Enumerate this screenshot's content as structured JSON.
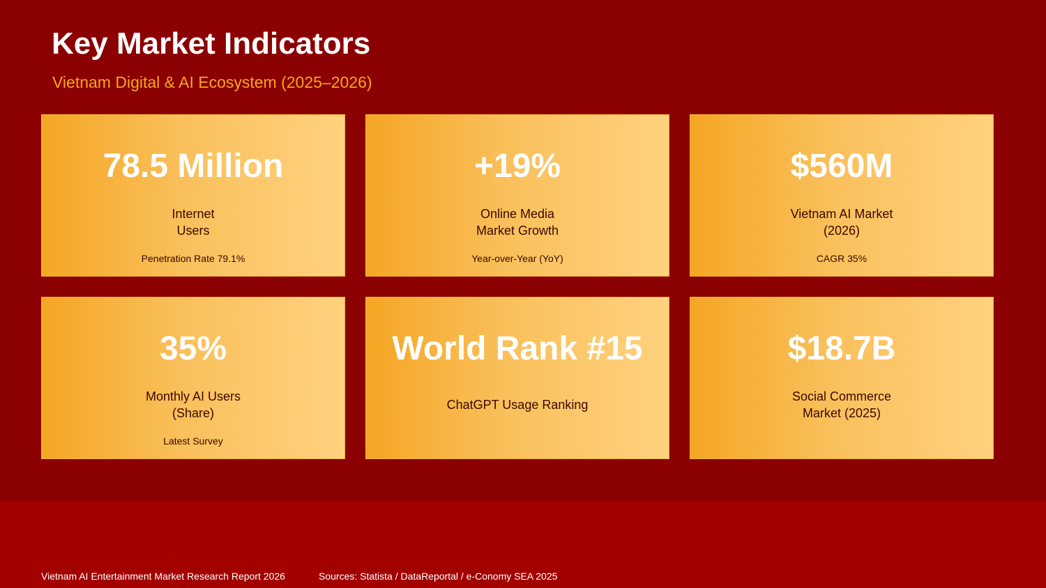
{
  "header": {
    "title": "Key Market Indicators",
    "subtitle": "Vietnam Digital & AI Ecosystem (2025–2026)"
  },
  "cards": [
    {
      "value": "78.5 Million",
      "label": [
        "Internet",
        "Users"
      ],
      "note": "Penetration Rate 79.1%"
    },
    {
      "value": "+19%",
      "label": [
        "Online Media",
        "Market Growth"
      ],
      "note": "Year-over-Year (YoY)"
    },
    {
      "value": "$560M",
      "label": [
        "Vietnam AI Market",
        "(2026)"
      ],
      "note": "CAGR 35%"
    },
    {
      "value": "35%",
      "label": [
        "Monthly AI Users",
        "(Share)"
      ],
      "note": "Latest Survey"
    },
    {
      "value": "World Rank #15",
      "label": [
        "ChatGPT Usage Ranking"
      ]
    },
    {
      "value": "$18.7B",
      "label": [
        "Social Commerce",
        "Market (2025)"
      ]
    }
  ],
  "footer": {
    "report": "Vietnam AI Entertainment Market Research Report 2026",
    "sources": "Sources: Statista / DataReportal / e-Conomy SEA 2025"
  }
}
